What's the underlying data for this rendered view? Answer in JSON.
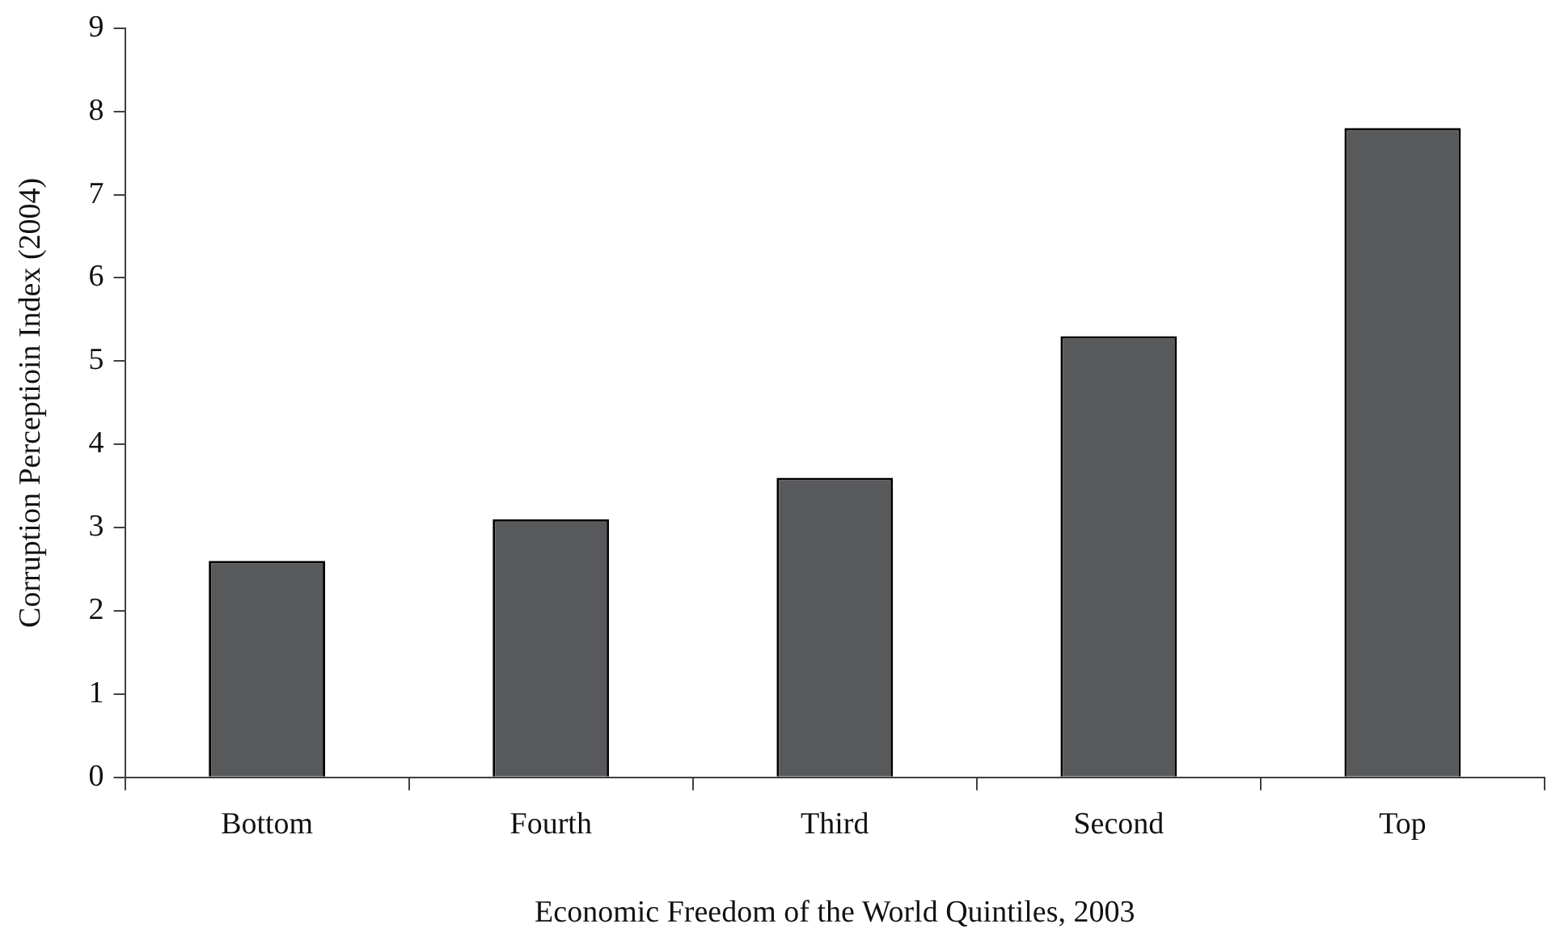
{
  "chart_data": {
    "type": "bar",
    "xlabel": "Economic Freedom of the World Quintiles, 2003",
    "ylabel": "Corruption Perceptioin Index (2004)",
    "categories": [
      "Bottom",
      "Fourth",
      "Third",
      "Second",
      "Top"
    ],
    "values": [
      2.6,
      3.1,
      3.6,
      5.3,
      7.8
    ],
    "color": "#58595b",
    "ylim": [
      0,
      9
    ],
    "yticks": [
      0,
      1,
      2,
      3,
      4,
      5,
      6,
      7,
      8,
      9
    ]
  }
}
